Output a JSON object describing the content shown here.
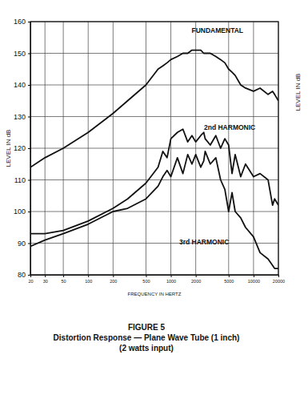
{
  "chart_data": {
    "type": "line",
    "title": "FIGURE 5",
    "subtitle": [
      "Distortion Response — Plane Wave Tube (1 inch)",
      "(2 watts input)"
    ],
    "x_label": "FREQUENCY IN HERTZ",
    "y_label": "LEVEL IN dB",
    "log": "x",
    "grid": true,
    "color": "#111111",
    "xlim": [
      20,
      20000
    ],
    "ylim": [
      80,
      160
    ],
    "xticks": [
      20,
      30,
      50,
      100,
      200,
      500,
      1000,
      2000,
      5000,
      10000,
      20000
    ],
    "yticks": [
      80,
      90,
      100,
      110,
      120,
      130,
      140,
      150,
      160
    ],
    "x": [
      20,
      30,
      50,
      100,
      200,
      300,
      500,
      700,
      800,
      900,
      1000,
      1200,
      1400,
      1600,
      1800,
      2000,
      2300,
      2500,
      2600,
      3000,
      3500,
      4000,
      4500,
      5000,
      5500,
      6000,
      7000,
      8000,
      10000,
      12000,
      15000,
      17000,
      18000,
      20000
    ],
    "series": [
      {
        "name": "FUNDAMENTAL",
        "color": "#111111",
        "values": [
          114,
          117,
          120,
          125,
          131,
          135,
          140,
          145,
          146,
          147,
          148,
          149,
          150,
          150,
          151,
          151,
          151,
          150,
          150,
          150,
          149,
          148,
          147,
          145,
          144,
          143,
          140,
          139,
          138,
          139,
          137,
          138,
          137,
          135
        ]
      },
      {
        "name": "2nd HARMONIC",
        "color": "#111111",
        "values": [
          93,
          93,
          94,
          97,
          101,
          104,
          109,
          114,
          119,
          117,
          123,
          125,
          126,
          122,
          124,
          122,
          124,
          125,
          123,
          121,
          124,
          120,
          123,
          121,
          112,
          118,
          111,
          115,
          111,
          112,
          110,
          102,
          104,
          102
        ]
      },
      {
        "name": "3rd HARMONIC",
        "color": "#111111",
        "values": [
          89,
          91,
          93,
          96,
          100,
          101,
          104,
          108,
          111,
          113,
          111,
          117,
          112,
          118,
          115,
          118,
          114,
          116,
          119,
          115,
          117,
          110,
          107,
          100,
          106,
          100,
          98,
          95,
          92,
          87,
          85,
          83,
          82,
          82
        ]
      }
    ]
  }
}
